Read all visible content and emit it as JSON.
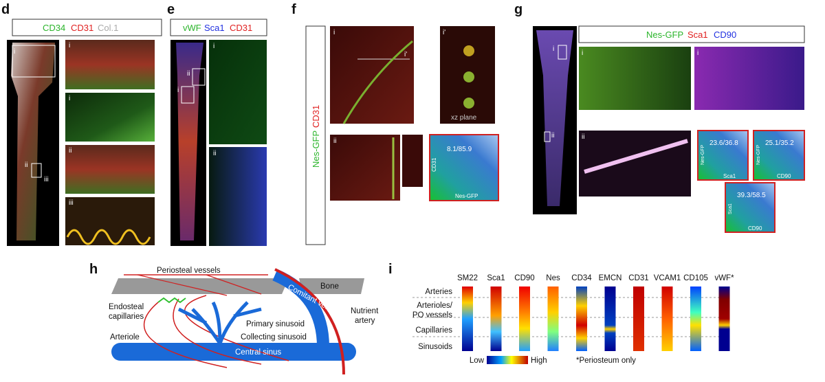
{
  "panels": {
    "d": {
      "label": "d",
      "legend": [
        "CD34",
        "CD31",
        "Col.1"
      ],
      "image_labels": [
        "i",
        "ii",
        "iii"
      ],
      "insets": [
        "i",
        "i",
        "ii",
        "iii"
      ]
    },
    "e": {
      "label": "e",
      "legend": [
        "vWF",
        "Sca1",
        "CD31"
      ],
      "image_labels": [
        "ii",
        "i"
      ],
      "insets": [
        "i",
        "ii"
      ]
    },
    "f": {
      "label": "f",
      "side_label": [
        "Nes-GFP",
        "CD31"
      ],
      "insets": [
        "i",
        "i'",
        "i'",
        "ii"
      ],
      "xz": "xz plane",
      "flow": {
        "value": "8.1/85.9",
        "y": "CD31",
        "x": "Nes-GFP"
      }
    },
    "g": {
      "label": "g",
      "legend": [
        "Nes-GFP",
        "Sca1",
        "CD90"
      ],
      "image_labels": [
        "i",
        "ii"
      ],
      "insets": [
        "i",
        "i",
        "ii"
      ],
      "flows": [
        {
          "value": "23.6/36.8",
          "y": "Nes-GFP",
          "x": "Sca1"
        },
        {
          "value": "25.1/35.2",
          "y": "Nes-GFP",
          "x": "CD90"
        },
        {
          "value": "39.3/58.5",
          "y": "Sca1",
          "x": "CD90"
        }
      ]
    },
    "h": {
      "label": "h",
      "periosteal": "Periosteal vessels",
      "bone": "Bone",
      "comitant": "Comitant vein",
      "nutrient": [
        "Nutrient",
        "artery"
      ],
      "endosteal": [
        "Endosteal",
        "capillaries"
      ],
      "primary": "Primary sinusoid",
      "collecting": "Collecting sinusoid",
      "arteriole": "Arteriole",
      "central": "Central sinus"
    },
    "i": {
      "label": "i",
      "columns": [
        "SM22",
        "Sca1",
        "CD90",
        "Nes",
        "CD34",
        "EMCN",
        "CD31",
        "VCAM1",
        "CD105",
        "vWF*"
      ],
      "rows": [
        "Arteries",
        [
          "Arterioles/",
          "PO vessels"
        ],
        "Capillaries",
        "Sinusoids"
      ],
      "scale": [
        "Low",
        "High"
      ],
      "note": "*Periosteum only"
    }
  }
}
